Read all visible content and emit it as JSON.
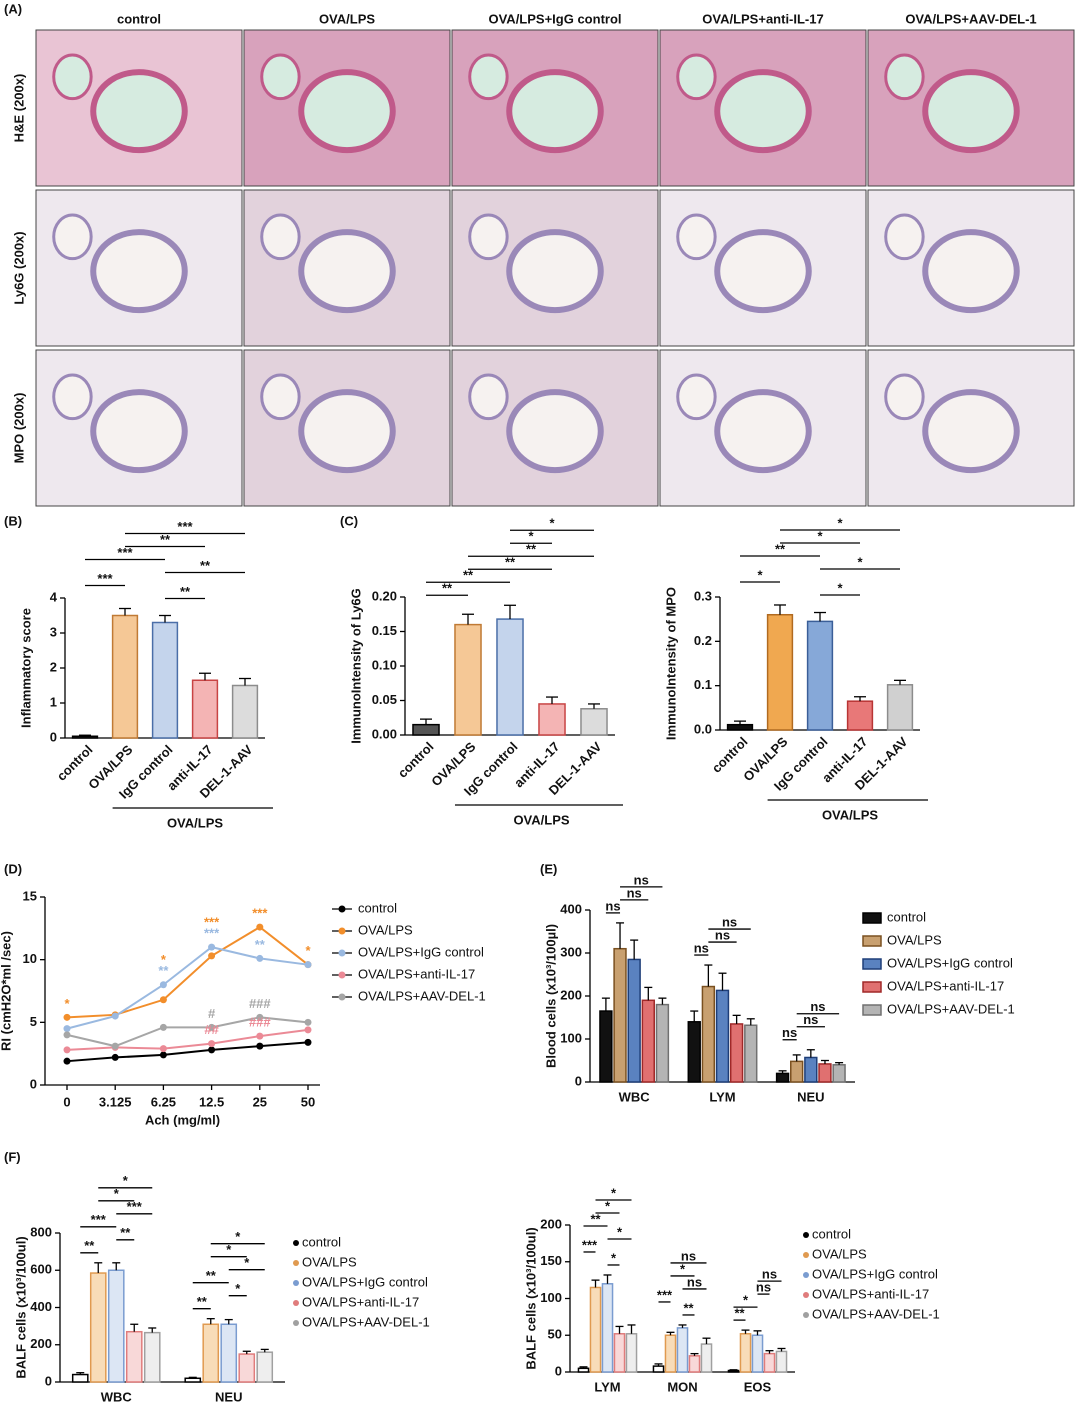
{
  "panels": [
    "(A)",
    "(B)",
    "(C)",
    "(D)",
    "(E)",
    "(F)"
  ],
  "micrographs": {
    "columns": [
      "control",
      "OVA/LPS",
      "OVA/LPS+IgG control",
      "OVA/LPS+anti-IL-17",
      "OVA/LPS+AAV-DEL-1"
    ],
    "rows": [
      "H&E (200x)",
      "Ly6G (200x)",
      "MPO (200x)"
    ]
  },
  "chart_data": [
    {
      "type": "bar",
      "ylabel": "Inflammatory score",
      "categories": [
        "control",
        "OVA/LPS",
        "IgG control",
        "anti-IL-17",
        "DEL-1-AAV"
      ],
      "values": [
        0.05,
        3.5,
        3.3,
        1.65,
        1.5
      ],
      "errors": [
        0.03,
        0.2,
        0.2,
        0.2,
        0.2
      ],
      "colors": [
        "#222222",
        "#f5c896",
        "#c4d4ec",
        "#f4b4b4",
        "#dcdcdc"
      ],
      "edge_colors": [
        "#000000",
        "#c07a34",
        "#4a6ea8",
        "#c84444",
        "#8c8c8c"
      ],
      "ylim": [
        0,
        4
      ],
      "yticks": [
        0,
        1,
        2,
        3,
        4
      ],
      "group_label": "OVA/LPS",
      "comparisons": [
        {
          "label": "***",
          "groups": [
            1,
            4
          ]
        },
        {
          "label": "**",
          "groups": [
            1,
            3
          ]
        },
        {
          "label": "***",
          "groups": [
            0,
            2
          ]
        },
        {
          "label": "**",
          "groups": [
            2,
            4
          ]
        },
        {
          "label": "***",
          "groups": [
            0,
            1
          ]
        },
        {
          "label": "**",
          "groups": [
            2,
            3
          ]
        }
      ]
    },
    {
      "type": "bar",
      "ylabel": "ImmunoIntensity of Ly6G",
      "categories": [
        "control",
        "OVA/LPS",
        "IgG control",
        "anti-IL-17",
        "DEL-1-AAV"
      ],
      "values": [
        0.015,
        0.16,
        0.168,
        0.045,
        0.038
      ],
      "errors": [
        0.008,
        0.015,
        0.02,
        0.01,
        0.007
      ],
      "colors": [
        "#555555",
        "#f5c896",
        "#c4d4ec",
        "#f4b4b4",
        "#dcdcdc"
      ],
      "edge_colors": [
        "#000000",
        "#c07a34",
        "#4a6ea8",
        "#c84444",
        "#8c8c8c"
      ],
      "ylim": [
        0,
        0.2
      ],
      "yticks": [
        {
          "value": 0,
          "label": "0.00"
        },
        0.05,
        {
          "value": 0.1,
          "label": "0.10"
        },
        0.15,
        {
          "value": 0.2,
          "label": "0.20"
        }
      ],
      "group_label": "OVA/LPS",
      "comparisons": [
        {
          "label": "*",
          "groups": [
            2,
            4
          ]
        },
        {
          "label": "*",
          "groups": [
            2,
            3
          ]
        },
        {
          "label": "**",
          "groups": [
            1,
            4
          ]
        },
        {
          "label": "**",
          "groups": [
            1,
            3
          ]
        },
        {
          "label": "**",
          "groups": [
            0,
            2
          ]
        },
        {
          "label": "**",
          "groups": [
            0,
            1
          ]
        }
      ]
    },
    {
      "type": "bar",
      "ylabel": "ImmunoIntensity of MPO",
      "categories": [
        "control",
        "OVA/LPS",
        "IgG control",
        "anti-IL-17",
        "DEL-1-AAV"
      ],
      "values": [
        0.012,
        0.26,
        0.245,
        0.065,
        0.102
      ],
      "errors": [
        0.008,
        0.022,
        0.02,
        0.01,
        0.01
      ],
      "colors": [
        "#111111",
        "#f0a850",
        "#86a8d8",
        "#e87878",
        "#d0d0d0"
      ],
      "edge_colors": [
        "#000000",
        "#b06a20",
        "#3a5e98",
        "#b83434",
        "#8c8c8c"
      ],
      "ylim": [
        0,
        0.3
      ],
      "yticks": [
        {
          "value": 0,
          "label": "0.0"
        },
        0.1,
        0.2,
        0.3
      ],
      "group_label": "OVA/LPS",
      "comparisons": [
        {
          "label": "*",
          "groups": [
            1,
            4
          ]
        },
        {
          "label": "*",
          "groups": [
            1,
            3
          ]
        },
        {
          "label": "**",
          "groups": [
            0,
            2
          ]
        },
        {
          "label": "*",
          "groups": [
            2,
            4
          ]
        },
        {
          "label": "*",
          "groups": [
            0,
            1
          ]
        },
        {
          "label": "*",
          "groups": [
            2,
            3
          ]
        }
      ]
    },
    {
      "type": "line",
      "ylabel": "RI (cmH2O*ml /sec)",
      "xlabel": "Ach (mg/ml)",
      "categories": [
        "0",
        "3.125",
        "6.25",
        "12.5",
        "25",
        "50"
      ],
      "ylim": [
        0,
        15
      ],
      "yticks": [
        0,
        5,
        10,
        15
      ],
      "series": [
        {
          "name": "control",
          "color": "#000000",
          "values": [
            1.9,
            2.2,
            2.4,
            2.8,
            3.1,
            3.4
          ]
        },
        {
          "name": "OVA/LPS",
          "color": "#f28e2b",
          "values": [
            5.4,
            5.6,
            6.8,
            10.3,
            12.6,
            9.6
          ]
        },
        {
          "name": "OVA/LPS+IgG control",
          "color": "#9ab9e0",
          "values": [
            4.5,
            5.5,
            8.0,
            11.0,
            10.1,
            9.6
          ]
        },
        {
          "name": "OVA/LPS+anti-IL-17",
          "color": "#eb8a96",
          "values": [
            2.8,
            3.0,
            2.9,
            3.3,
            3.9,
            4.4
          ]
        },
        {
          "name": "OVA/LPS+AAV-DEL-1",
          "color": "#a6a6a6",
          "values": [
            4.0,
            3.1,
            4.6,
            4.6,
            5.4,
            5.0
          ]
        }
      ],
      "annotations": [
        {
          "text": "*",
          "category": "0",
          "series": "OVA/LPS"
        },
        {
          "text": "**",
          "category": "6.25",
          "series": "OVA/LPS+IgG control"
        },
        {
          "text": "*",
          "category": "6.25",
          "series": "OVA/LPS"
        },
        {
          "text": "##",
          "category": "12.5",
          "series": "OVA/LPS+anti-IL-17"
        },
        {
          "text": "#",
          "category": "12.5",
          "series": "OVA/LPS+AAV-DEL-1"
        },
        {
          "text": "***",
          "category": "12.5",
          "series": "OVA/LPS+IgG control"
        },
        {
          "text": "***",
          "category": "12.5",
          "series": "OVA/LPS"
        },
        {
          "text": "###",
          "category": "25",
          "series": "OVA/LPS+anti-IL-17"
        },
        {
          "text": "###",
          "category": "25",
          "series": "OVA/LPS+AAV-DEL-1"
        },
        {
          "text": "**",
          "category": "25",
          "series": "OVA/LPS+IgG control"
        },
        {
          "text": "***",
          "category": "25",
          "series": "OVA/LPS"
        },
        {
          "text": "*",
          "category": "50",
          "series": "OVA/LPS"
        }
      ]
    },
    {
      "type": "grouped_bar",
      "legend_marker": "square",
      "ylabel": "Blood cells (x10³/100µl)",
      "categories": [
        "WBC",
        "LYM",
        "NEU"
      ],
      "ylim": [
        0,
        400
      ],
      "yticks": [
        0,
        100,
        200,
        300,
        400
      ],
      "series": [
        {
          "name": "control",
          "color": "#111111",
          "edge": "#000000",
          "values": [
            165,
            140,
            20
          ],
          "errors": [
            30,
            25,
            6
          ]
        },
        {
          "name": "OVA/LPS",
          "color": "#c8a070",
          "edge": "#7a5020",
          "values": [
            310,
            222,
            48
          ],
          "errors": [
            60,
            50,
            15
          ]
        },
        {
          "name": "OVA/LPS+IgG control",
          "color": "#5a82c0",
          "edge": "#1e3e78",
          "values": [
            285,
            213,
            57
          ],
          "errors": [
            45,
            40,
            18
          ]
        },
        {
          "name": "OVA/LPS+anti-IL-17",
          "color": "#e07070",
          "edge": "#a02828",
          "values": [
            190,
            135,
            42
          ],
          "errors": [
            30,
            20,
            8
          ]
        },
        {
          "name": "OVA/LPS+AAV-DEL-1",
          "color": "#b4b4b4",
          "edge": "#707070",
          "values": [
            180,
            132,
            40
          ],
          "errors": [
            15,
            15,
            5
          ]
        }
      ],
      "comparisons": [
        {
          "label": "ns",
          "category": 0,
          "bars": [
            1,
            4
          ]
        },
        {
          "label": "ns",
          "category": 0,
          "bars": [
            1,
            3
          ]
        },
        {
          "label": "ns",
          "category": 0,
          "bars": [
            0,
            1
          ]
        },
        {
          "label": "ns",
          "category": 1,
          "bars": [
            1,
            4
          ]
        },
        {
          "label": "ns",
          "category": 1,
          "bars": [
            1,
            3
          ]
        },
        {
          "label": "ns",
          "category": 1,
          "bars": [
            0,
            1
          ]
        },
        {
          "label": "ns",
          "category": 2,
          "bars": [
            1,
            4
          ]
        },
        {
          "label": "ns",
          "category": 2,
          "bars": [
            1,
            3
          ]
        },
        {
          "label": "ns",
          "category": 2,
          "bars": [
            0,
            1
          ]
        }
      ]
    },
    {
      "type": "grouped_bar",
      "legend_marker": "dot",
      "ylabel": "BALF cells (x10³/100ul)",
      "categories": [
        "WBC",
        "NEU"
      ],
      "ylim": [
        0,
        800
      ],
      "yticks": [
        0,
        200,
        400,
        600,
        800
      ],
      "series": [
        {
          "name": "control",
          "color": "#ffffff",
          "edge": "#000000",
          "values": [
            40,
            20
          ],
          "errors": [
            10,
            5
          ]
        },
        {
          "name": "OVA/LPS",
          "color": "#f8dcb8",
          "edge": "#e09a50",
          "values": [
            585,
            310
          ],
          "errors": [
            55,
            30
          ]
        },
        {
          "name": "OVA/LPS+IgG control",
          "color": "#dce6f4",
          "edge": "#7a9cd0",
          "values": [
            600,
            310
          ],
          "errors": [
            40,
            25
          ]
        },
        {
          "name": "OVA/LPS+anti-IL-17",
          "color": "#f8d8d8",
          "edge": "#e07c7c",
          "values": [
            270,
            150
          ],
          "errors": [
            40,
            15
          ]
        },
        {
          "name": "OVA/LPS+AAV-DEL-1",
          "color": "#eeeeee",
          "edge": "#a0a0a0",
          "values": [
            265,
            160
          ],
          "errors": [
            25,
            15
          ]
        }
      ],
      "comparisons": [
        {
          "label": "*",
          "category": 0,
          "bars": [
            1,
            4
          ]
        },
        {
          "label": "*",
          "category": 0,
          "bars": [
            1,
            3
          ]
        },
        {
          "label": "***",
          "category": 0,
          "bars": [
            2,
            4
          ]
        },
        {
          "label": "***",
          "category": 0,
          "bars": [
            0,
            2
          ]
        },
        {
          "label": "**",
          "category": 0,
          "bars": [
            2,
            3
          ]
        },
        {
          "label": "**",
          "category": 0,
          "bars": [
            0,
            1
          ]
        },
        {
          "label": "*",
          "category": 1,
          "bars": [
            1,
            4
          ]
        },
        {
          "label": "*",
          "category": 1,
          "bars": [
            1,
            3
          ]
        },
        {
          "label": "*",
          "category": 1,
          "bars": [
            2,
            4
          ]
        },
        {
          "label": "**",
          "category": 1,
          "bars": [
            0,
            2
          ]
        },
        {
          "label": "*",
          "category": 1,
          "bars": [
            2,
            3
          ]
        },
        {
          "label": "**",
          "category": 1,
          "bars": [
            0,
            1
          ]
        }
      ]
    },
    {
      "type": "grouped_bar",
      "legend_marker": "dot",
      "ylabel": "BALF cells (x10³/100ul)",
      "categories": [
        "LYM",
        "MON",
        "EOS"
      ],
      "ylim": [
        0,
        200
      ],
      "yticks": [
        0,
        50,
        100,
        150,
        200
      ],
      "series": [
        {
          "name": "control",
          "color": "#ffffff",
          "edge": "#000000",
          "values": [
            5,
            8,
            2
          ],
          "errors": [
            2,
            3,
            1
          ]
        },
        {
          "name": "OVA/LPS",
          "color": "#f8dcb8",
          "edge": "#e09a50",
          "values": [
            115,
            50,
            52
          ],
          "errors": [
            10,
            4,
            5
          ]
        },
        {
          "name": "OVA/LPS+IgG control",
          "color": "#dce6f4",
          "edge": "#7a9cd0",
          "values": [
            120,
            60,
            50
          ],
          "errors": [
            12,
            4,
            6
          ]
        },
        {
          "name": "OVA/LPS+anti-IL-17",
          "color": "#f8d8d8",
          "edge": "#e07c7c",
          "values": [
            52,
            22,
            25
          ],
          "errors": [
            10,
            3,
            4
          ]
        },
        {
          "name": "OVA/LPS+AAV-DEL-1",
          "color": "#eeeeee",
          "edge": "#a0a0a0",
          "values": [
            52,
            38,
            28
          ],
          "errors": [
            12,
            8,
            4
          ]
        }
      ],
      "comparisons": [
        {
          "label": "*",
          "category": 0,
          "bars": [
            1,
            4
          ]
        },
        {
          "label": "*",
          "category": 0,
          "bars": [
            1,
            3
          ]
        },
        {
          "label": "**",
          "category": 0,
          "bars": [
            0,
            2
          ]
        },
        {
          "label": "*",
          "category": 0,
          "bars": [
            2,
            4
          ]
        },
        {
          "label": "***",
          "category": 0,
          "bars": [
            0,
            1
          ]
        },
        {
          "label": "*",
          "category": 0,
          "bars": [
            2,
            3
          ]
        },
        {
          "label": "ns",
          "category": 1,
          "bars": [
            1,
            4
          ]
        },
        {
          "label": "*",
          "category": 1,
          "bars": [
            1,
            3
          ]
        },
        {
          "label": "ns",
          "category": 1,
          "bars": [
            2,
            4
          ]
        },
        {
          "label": "***",
          "category": 1,
          "bars": [
            0,
            1
          ]
        },
        {
          "label": "**",
          "category": 1,
          "bars": [
            2,
            3
          ]
        },
        {
          "label": "ns",
          "category": 2,
          "bars": [
            2,
            4
          ]
        },
        {
          "label": "ns",
          "category": 2,
          "bars": [
            2,
            3
          ]
        },
        {
          "label": "*",
          "category": 2,
          "bars": [
            0,
            2
          ]
        },
        {
          "label": "**",
          "category": 2,
          "bars": [
            0,
            1
          ]
        }
      ]
    }
  ]
}
